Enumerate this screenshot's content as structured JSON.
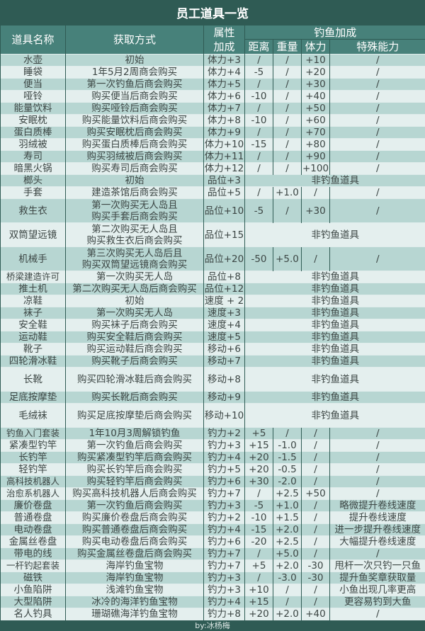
{
  "title": "员工道具一览",
  "headers": {
    "name": "道具名称",
    "method": "获取方式",
    "attr": "属性加成",
    "fishing": "钓鱼加成",
    "distance": "距离",
    "weight": "重量",
    "stamina": "体力",
    "special": "特殊能力"
  },
  "non_fishing_label": "非钓鱼道具",
  "rows": [
    {
      "name": "水壶",
      "method": [
        "初始"
      ],
      "attr": "体力+3",
      "distance": "/",
      "weight": "/",
      "stamina": "+10",
      "special": "/"
    },
    {
      "name": "睡袋",
      "method": [
        "1年5月2周商会购买"
      ],
      "attr": "体力+4",
      "distance": "-5",
      "weight": "/",
      "stamina": "+20",
      "special": "/"
    },
    {
      "name": "便当",
      "method": [
        "第一次钓鱼后商会购买"
      ],
      "attr": "体力+5",
      "distance": "/",
      "weight": "/",
      "stamina": "+30",
      "special": "/"
    },
    {
      "name": "哑铃",
      "method": [
        "购买便当后商会购买"
      ],
      "attr": "体力+6",
      "distance": "-10",
      "weight": "/",
      "stamina": "+40",
      "special": "/"
    },
    {
      "name": "能量饮料",
      "method": [
        "购买哑铃后商会购买"
      ],
      "attr": "体力+7",
      "distance": "/",
      "weight": "/",
      "stamina": "+50",
      "special": "/"
    },
    {
      "name": "安眠枕",
      "method": [
        "购买能量饮料后商会购买"
      ],
      "attr": "体力+8",
      "distance": "-10",
      "weight": "/",
      "stamina": "+60",
      "special": "/"
    },
    {
      "name": "蛋白质棒",
      "method": [
        "购买安眠枕后商会购买"
      ],
      "attr": "体力+9",
      "distance": "/",
      "weight": "/",
      "stamina": "+70",
      "special": "/"
    },
    {
      "name": "羽绒被",
      "method": [
        "购买蛋白质棒后商会购买"
      ],
      "attr": "体力+10",
      "distance": "-15",
      "weight": "/",
      "stamina": "+80",
      "special": "/"
    },
    {
      "name": "寿司",
      "method": [
        "购买羽绒被后商会购买"
      ],
      "attr": "体力+11",
      "distance": "/",
      "weight": "/",
      "stamina": "+90",
      "special": "/"
    },
    {
      "name": "暗黑火锅",
      "method": [
        "购买寿司后商会购买"
      ],
      "attr": "体力+12",
      "distance": "/",
      "weight": "/",
      "stamina": "+100",
      "special": "/"
    },
    {
      "name": "榔头",
      "method": [
        "初始"
      ],
      "attr": "品位+3",
      "non_fishing": true
    },
    {
      "name": "手套",
      "method": [
        "建造茶馆后商会购买"
      ],
      "attr": "品位+5",
      "distance": "/",
      "weight": "+1.0",
      "stamina": "/",
      "special": "/"
    },
    {
      "name": "救生衣",
      "method": [
        "第一次购买无人岛且",
        "购买手套后商会购买"
      ],
      "attr": "品位+10",
      "distance": "-5",
      "weight": "/",
      "stamina": "+30",
      "special": "/"
    },
    {
      "name": "双筒望远镜",
      "method": [
        "第二次购买无人岛且",
        "购买救生衣后商会购买"
      ],
      "attr": "品位+15",
      "non_fishing": true
    },
    {
      "name": "机械手",
      "method": [
        "第三次购买无人岛后且",
        "购买双筒望远镜商会购买"
      ],
      "attr": "品位+20",
      "distance": "-50",
      "weight": "+5.0",
      "stamina": "/",
      "special": "/"
    },
    {
      "name": "桥梁建造许可",
      "method": [
        "第一次购买无人岛"
      ],
      "attr": "品位+8",
      "non_fishing": true
    },
    {
      "name": "推土机",
      "method": [
        "第二次购买无人岛后商会购买"
      ],
      "attr": "品位+12",
      "non_fishing": true
    },
    {
      "name": "凉鞋",
      "method": [
        "初始"
      ],
      "attr": "速度 + 2",
      "non_fishing": true
    },
    {
      "name": "袜子",
      "method": [
        "第一次购买无人岛"
      ],
      "attr": "速度+3",
      "non_fishing": true
    },
    {
      "name": "安全鞋",
      "method": [
        "购买袜子后商会购买"
      ],
      "attr": "速度+4",
      "non_fishing": true
    },
    {
      "name": "运动鞋",
      "method": [
        "购买安全鞋后商会购买"
      ],
      "attr": "速度+5",
      "non_fishing": true
    },
    {
      "name": "靴子",
      "method": [
        "购买运动鞋后商会购买"
      ],
      "attr": "移动+6",
      "non_fishing": true
    },
    {
      "name": "四轮滑冰鞋",
      "method": [
        "购买靴子后商会购买"
      ],
      "attr": "移动+7",
      "non_fishing": true
    },
    {
      "name": "长靴",
      "method": [
        "购买四轮滑冰鞋后商会购买"
      ],
      "attr": "移动+8",
      "non_fishing": true
    },
    {
      "name": "足底按摩垫",
      "method": [
        "购买长靴后商会购买"
      ],
      "attr": "移动+9",
      "non_fishing": true
    },
    {
      "name": "毛绒袜",
      "method": [
        "购买足底按摩垫后商会购买"
      ],
      "attr": "移动+10",
      "non_fishing": true
    },
    {
      "name": "钓鱼入门套装",
      "method": [
        "1年10月3周解锁钓鱼"
      ],
      "attr": "钓力+2",
      "distance": "+5",
      "weight": "/",
      "stamina": "/",
      "special": "/"
    },
    {
      "name": "紧凑型钓竿",
      "method": [
        "第一次钓鱼后商会购买"
      ],
      "attr": "钓力+3",
      "distance": "+15",
      "weight": "-1.0",
      "stamina": "/",
      "special": "/"
    },
    {
      "name": "长钓竿",
      "method": [
        "购买紧凑型钓竿后商会购买"
      ],
      "attr": "钓力+4",
      "distance": "+20",
      "weight": "-1.5",
      "stamina": "/",
      "special": "/"
    },
    {
      "name": "轻钓竿",
      "method": [
        "购买长钓竿后商会购买"
      ],
      "attr": "钓力+5",
      "distance": "+20",
      "weight": "-0.5",
      "stamina": "/",
      "special": "/"
    },
    {
      "name": "高科技机器人",
      "method": [
        "购买轻钓竿后商会购买"
      ],
      "attr": "钓力+6",
      "distance": "+30",
      "weight": "-2.0",
      "stamina": "/",
      "special": "/"
    },
    {
      "name": "治愈系机器人",
      "method": [
        "购买高科技机器人后商会购买"
      ],
      "attr": "钓力+7",
      "distance": "/",
      "weight": "+2.5",
      "stamina": "+50",
      "special": "/"
    },
    {
      "name": "廉价卷盘",
      "method": [
        "第一次钓鱼后商会购买"
      ],
      "attr": "钓力+3",
      "distance": "-5",
      "weight": "+1.0",
      "stamina": "/",
      "special": "略微提升卷线速度"
    },
    {
      "name": "普通卷盘",
      "method": [
        "购买廉价卷盘后商会购买"
      ],
      "attr": "钓力+2",
      "distance": "-10",
      "weight": "+1.5",
      "stamina": "/",
      "special": "提升卷线速度"
    },
    {
      "name": "电动卷盘",
      "method": [
        "购买普通卷盘后商会购买"
      ],
      "attr": "钓力+4",
      "distance": "-15",
      "weight": "+2.0",
      "stamina": "/",
      "special": "进一步提升卷线速度"
    },
    {
      "name": "金属丝卷盘",
      "method": [
        "购买电动卷盘后商会购买"
      ],
      "attr": "钓力+6",
      "distance": "-20",
      "weight": "+2.5",
      "stamina": "/",
      "special": "大幅提升卷线速度"
    },
    {
      "name": "带电的线",
      "method": [
        "购买金属丝卷盘后商会购买"
      ],
      "attr": "钓力+7",
      "distance": "/",
      "weight": "+5.0",
      "stamina": "/",
      "special": "/"
    },
    {
      "name": "一杆钓起套装",
      "method": [
        "海岸钓鱼宝物"
      ],
      "attr": "钓力+7",
      "distance": "+5",
      "weight": "+2.0",
      "stamina": "-30",
      "special": "甩杆一次只钓一只鱼"
    },
    {
      "name": "磁铁",
      "method": [
        "海岸钓鱼宝物"
      ],
      "attr": "钓力+3",
      "distance": "/",
      "weight": "-3.0",
      "stamina": "-30",
      "special": "提升鱼奖章获取量"
    },
    {
      "name": "小鱼陷阱",
      "method": [
        "浅滩钓鱼宝物"
      ],
      "attr": "钓力+3",
      "distance": "+10",
      "weight": "/",
      "stamina": "/",
      "special": "小鱼出现几率更高"
    },
    {
      "name": "大型陷阱",
      "method": [
        "冰冷的海洋钓鱼宝物"
      ],
      "attr": "钓力+4",
      "distance": "+15",
      "weight": "/",
      "stamina": "/",
      "special": "更容易钓到大鱼"
    },
    {
      "name": "名人钓具",
      "method": [
        "珊瑚礁海洋钓鱼宝物"
      ],
      "attr": "钓力+8",
      "distance": "+20",
      "weight": "+2.0",
      "stamina": "+40",
      "special": "/"
    }
  ],
  "footer": "by:冰杨梅",
  "colors": {
    "dark": "#2f5b54",
    "header": "#47817a",
    "row_a": "#b7d6d2",
    "row_b": "#e4efee"
  }
}
